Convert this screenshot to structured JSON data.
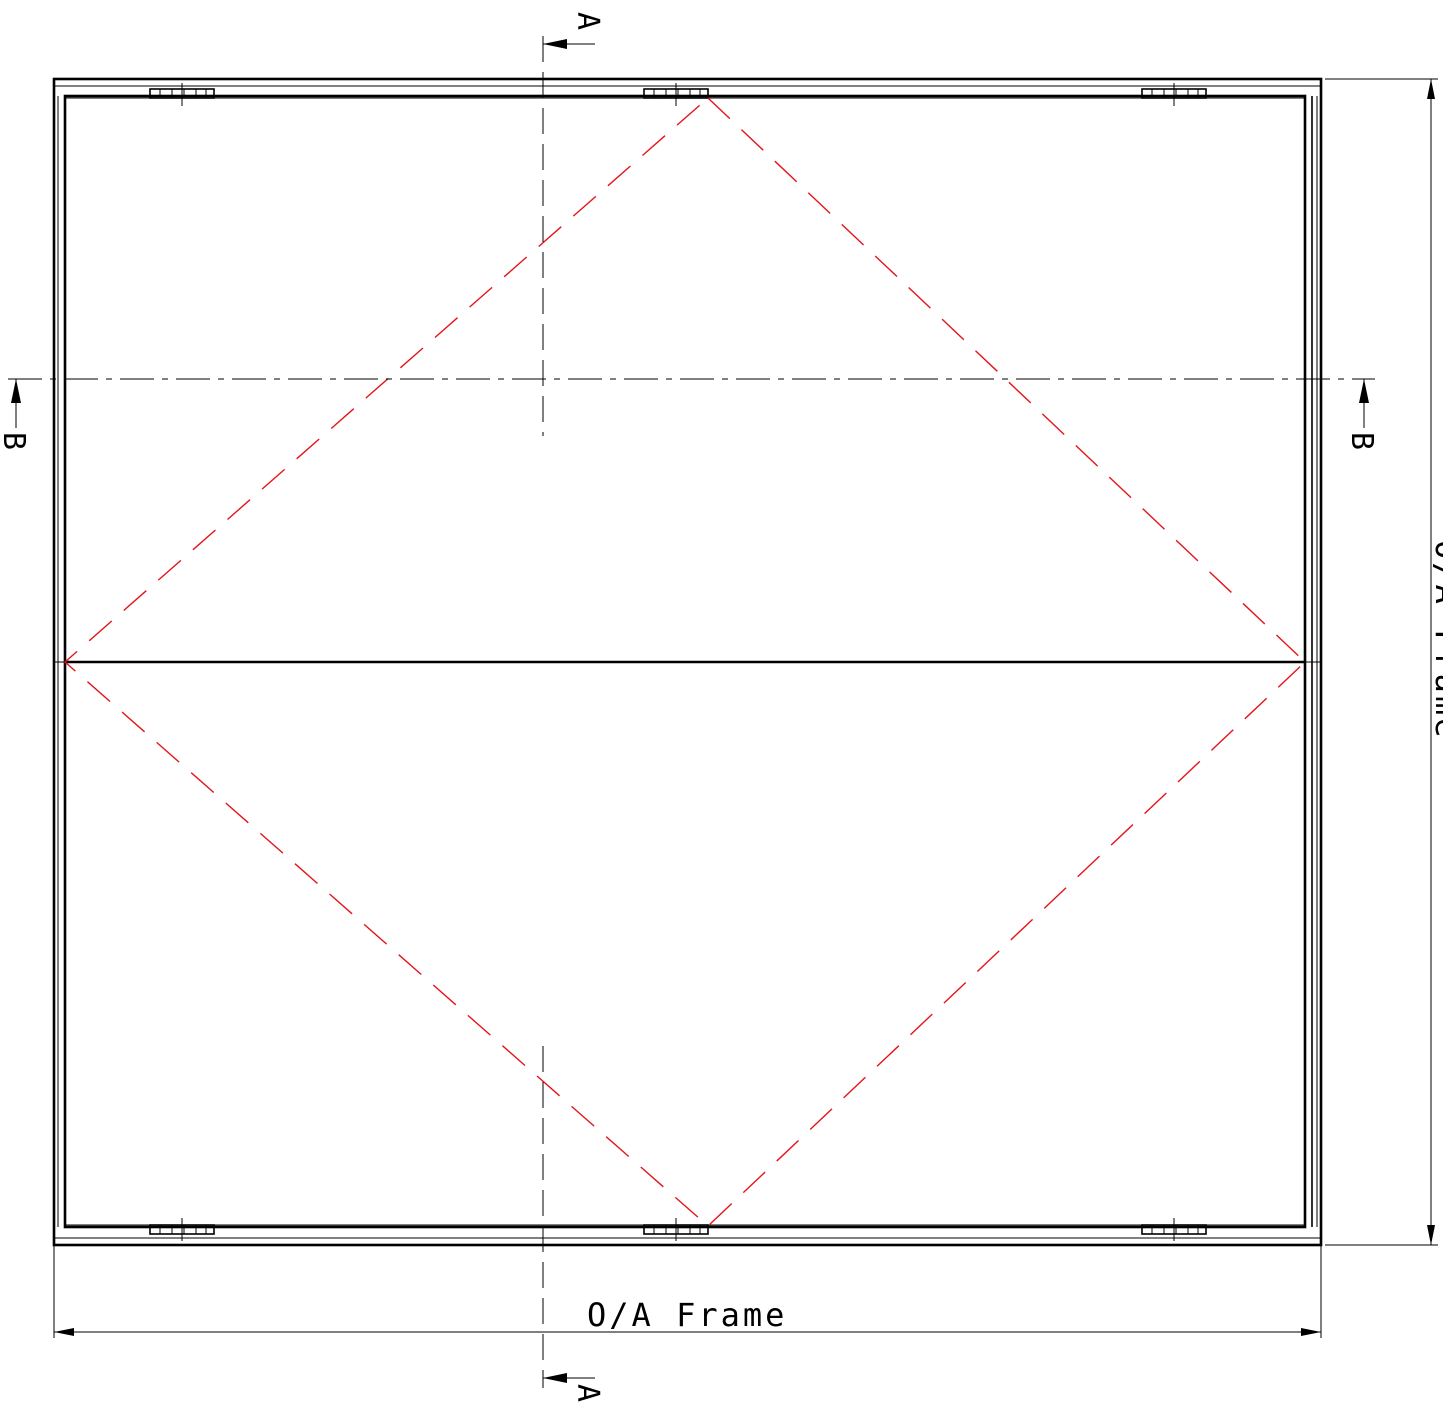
{
  "drawing": {
    "width_dimension_label": "O/A Frame",
    "height_dimension_label": "O/A Frame",
    "section_a_label": "A",
    "section_b_label": "B",
    "colors": {
      "outline": "#000000",
      "fold_lines": "#e4141b",
      "background": "#ffffff"
    },
    "hinge_count_per_edge": 3
  }
}
